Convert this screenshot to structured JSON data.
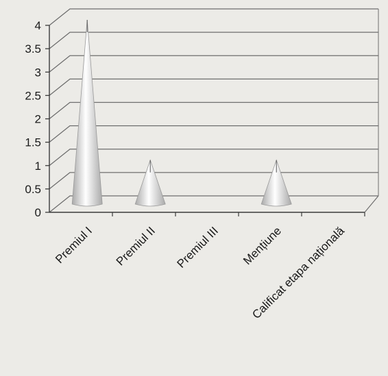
{
  "chart_data": {
    "type": "bar",
    "shape": "3d-cone",
    "categories": [
      "Premiul I",
      "Premiul II",
      "Premiul III",
      "Mențiune",
      "Calificat etapa națională"
    ],
    "values": [
      4,
      1,
      0,
      1,
      0
    ],
    "ylim": [
      0,
      4
    ],
    "yticks": [
      "0",
      "0.5",
      "1",
      "1.5",
      "2",
      "2.5",
      "3",
      "3.5",
      "4"
    ],
    "grid": true,
    "legend": "none",
    "colors": {
      "background": "#ecebe7",
      "cone_light": "#ffffff",
      "cone_dark": "#a9a9a9",
      "gridline": "#6e6e6e",
      "axis": "#3a3a3a"
    }
  }
}
